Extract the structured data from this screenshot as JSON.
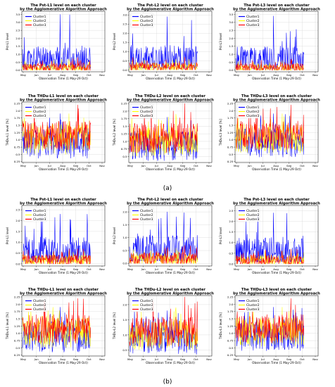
{
  "figure": {
    "panel_labels": [
      "(a)",
      "(b)"
    ]
  },
  "chart_data": [
    {
      "type": "line",
      "group": "(a)",
      "title": "The Pst-L1 level on each cluster",
      "subtitle": "by the Agglomerative Algorithm Approach",
      "ylabel": "Pst-L1 level",
      "xlabel": "Observation Time (1 May-29 Oct)",
      "ylim": [
        -0.1,
        3.7
      ],
      "yticks": [
        0.0,
        0.5,
        1.0,
        1.5,
        2.0,
        2.5,
        3.0,
        3.5
      ],
      "x_ticks": [
        "May",
        "Jun",
        "Jul",
        "Aug",
        "Sep",
        "Oct",
        "Nov"
      ],
      "grid": true,
      "legend_position": "top-left",
      "series": [
        {
          "name": "Cluster1",
          "color": "#0000ff",
          "base": 0.5,
          "amp": 1.0,
          "peak": 3.5,
          "low": 0.1,
          "seed": 11
        },
        {
          "name": "Cluster2",
          "color": "#ffff00",
          "base": 0.15,
          "amp": 0.25,
          "peak": 0.7,
          "low": 0.0,
          "seed": 12
        },
        {
          "name": "Cluster3",
          "color": "#ff0000",
          "base": 0.18,
          "amp": 0.25,
          "peak": 0.8,
          "low": 0.0,
          "seed": 13
        }
      ]
    },
    {
      "type": "line",
      "group": "(a)",
      "title": "The Pst-L2 level on each cluster",
      "subtitle": "by the Agglomerative Algorithm Approach",
      "ylabel": "Pst-L2 level",
      "xlabel": "Observation Time (1 May-29 Oct)",
      "ylim": [
        -0.1,
        3.2
      ],
      "yticks": [
        0.0,
        0.5,
        1.0,
        1.5,
        2.0,
        2.5,
        3.0
      ],
      "x_ticks": [
        "May",
        "Jun",
        "Jul",
        "Aug",
        "Sep",
        "Oct",
        "Nov"
      ],
      "grid": true,
      "legend_position": "top-left",
      "series": [
        {
          "name": "Cluster1",
          "color": "#0000ff",
          "base": 0.45,
          "amp": 0.9,
          "peak": 2.9,
          "low": 0.1,
          "seed": 21
        },
        {
          "name": "Cluster2",
          "color": "#ffff00",
          "base": 0.15,
          "amp": 0.25,
          "peak": 0.6,
          "low": 0.0,
          "seed": 22
        },
        {
          "name": "Cluster3",
          "color": "#ff0000",
          "base": 0.18,
          "amp": 0.25,
          "peak": 0.7,
          "low": 0.0,
          "seed": 23
        }
      ]
    },
    {
      "type": "line",
      "group": "(a)",
      "title": "The Pst-L3 level on each cluster",
      "subtitle": "by the Agglomerative Algorithm Approach",
      "ylabel": "Pst-L3 level",
      "xlabel": "Observation Time (1 May-29 Oct)",
      "ylim": [
        -0.1,
        3.7
      ],
      "yticks": [
        0.0,
        0.5,
        1.0,
        1.5,
        2.0,
        2.5,
        3.0,
        3.5
      ],
      "x_ticks": [
        "May",
        "Jun",
        "Jul",
        "Aug",
        "Sep",
        "Oct",
        "Nov"
      ],
      "grid": true,
      "legend_position": "top-left",
      "series": [
        {
          "name": "Cluster1",
          "color": "#0000ff",
          "base": 0.5,
          "amp": 1.0,
          "peak": 3.4,
          "low": 0.1,
          "seed": 31
        },
        {
          "name": "Cluster2",
          "color": "#ffff00",
          "base": 0.15,
          "amp": 0.25,
          "peak": 0.6,
          "low": 0.0,
          "seed": 32
        },
        {
          "name": "Cluster3",
          "color": "#ff0000",
          "base": 0.18,
          "amp": 0.25,
          "peak": 0.7,
          "low": 0.0,
          "seed": 33
        }
      ]
    },
    {
      "type": "line",
      "group": "(a)",
      "title": "The THDu-L1 level on each cluster",
      "subtitle": "by the Agglomerative Algorithm Approach",
      "ylabel": "THDu-L1 level [%]",
      "xlabel": "Observation Time (1 May-29 Oct)",
      "ylim": [
        0.22,
        2.3
      ],
      "yticks": [
        0.25,
        0.5,
        0.75,
        1.0,
        1.25,
        1.5,
        1.75,
        2.0,
        2.25
      ],
      "x_ticks": [
        "May",
        "Jun",
        "Jul",
        "Aug",
        "Sep",
        "Oct",
        "Nov"
      ],
      "grid": true,
      "legend_position": "top-left",
      "series": [
        {
          "name": "Cluster1",
          "color": "#0000ff",
          "base": 0.9,
          "amp": 0.55,
          "peak": 1.9,
          "low": 0.35,
          "seed": 41
        },
        {
          "name": "Cluster2",
          "color": "#ffff00",
          "base": 1.05,
          "amp": 0.55,
          "peak": 1.9,
          "low": 0.4,
          "seed": 42
        },
        {
          "name": "Cluster3",
          "color": "#ff0000",
          "base": 1.15,
          "amp": 0.5,
          "peak": 2.2,
          "low": 0.5,
          "seed": 43
        }
      ]
    },
    {
      "type": "line",
      "group": "(a)",
      "title": "The THDu-L2 level on each cluster",
      "subtitle": "by the Agglomerative Algorithm Approach",
      "ylabel": "THDu-L2 level [%]",
      "xlabel": "Observation Time (1 May-29 Oct)",
      "ylim": [
        0.3,
        2.3
      ],
      "yticks": [
        0.5,
        0.75,
        1.0,
        1.25,
        1.5,
        1.75,
        2.0,
        2.25
      ],
      "x_ticks": [
        "May",
        "Jun",
        "Jul",
        "Aug",
        "Sep",
        "Oct",
        "Nov"
      ],
      "grid": true,
      "legend_position": "top-left",
      "series": [
        {
          "name": "Cluster1",
          "color": "#0000ff",
          "base": 0.85,
          "amp": 0.5,
          "peak": 1.8,
          "low": 0.35,
          "seed": 51
        },
        {
          "name": "Cluster2",
          "color": "#ffff00",
          "base": 1.0,
          "amp": 0.5,
          "peak": 1.9,
          "low": 0.45,
          "seed": 52
        },
        {
          "name": "Cluster3",
          "color": "#ff0000",
          "base": 1.1,
          "amp": 0.5,
          "peak": 2.25,
          "low": 0.5,
          "seed": 53
        }
      ]
    },
    {
      "type": "line",
      "group": "(a)",
      "title": "The THDu-L3 level on each cluster",
      "subtitle": "by the Agglomerative Algorithm Approach",
      "ylabel": "THDu-L3 level [%]",
      "xlabel": "Observation Time (1 May-29 Oct)",
      "ylim": [
        0.22,
        2.3
      ],
      "yticks": [
        0.25,
        0.5,
        0.75,
        1.0,
        1.25,
        1.5,
        1.75,
        2.0,
        2.25
      ],
      "x_ticks": [
        "May",
        "Jun",
        "Jul",
        "Aug",
        "Sep",
        "Oct",
        "Nov"
      ],
      "grid": true,
      "legend_position": "top-left",
      "series": [
        {
          "name": "Cluster1",
          "color": "#0000ff",
          "base": 0.9,
          "amp": 0.5,
          "peak": 1.9,
          "low": 0.35,
          "seed": 61
        },
        {
          "name": "Cluster2",
          "color": "#ffff00",
          "base": 1.05,
          "amp": 0.5,
          "peak": 1.9,
          "low": 0.4,
          "seed": 62
        },
        {
          "name": "Cluster3",
          "color": "#ff0000",
          "base": 1.15,
          "amp": 0.5,
          "peak": 2.2,
          "low": 0.5,
          "seed": 63
        }
      ]
    },
    {
      "type": "line",
      "group": "(b)",
      "title": "The Pst-L1 level on each cluster",
      "subtitle": "by the Agglomerative Algorithm Approach",
      "ylabel": "Pst-L1 level",
      "xlabel": "Observation Time (1 May-29 Oct)",
      "ylim": [
        -0.1,
        2.7
      ],
      "yticks": [
        0.0,
        0.5,
        1.0,
        1.5,
        2.0,
        2.5
      ],
      "x_ticks": [
        "May",
        "Jun",
        "Jul",
        "Aug",
        "Sep",
        "Oct",
        "Nov"
      ],
      "grid": true,
      "legend_position": "top-left",
      "series": [
        {
          "name": "Cluster1",
          "color": "#0000ff",
          "base": 0.45,
          "amp": 0.8,
          "peak": 2.3,
          "low": 0.1,
          "seed": 71
        },
        {
          "name": "Cluster2",
          "color": "#ffff00",
          "base": 0.15,
          "amp": 0.25,
          "peak": 0.6,
          "low": 0.0,
          "seed": 72
        },
        {
          "name": "Cluster3",
          "color": "#ff0000",
          "base": 0.18,
          "amp": 0.25,
          "peak": 0.7,
          "low": 0.0,
          "seed": 73
        }
      ]
    },
    {
      "type": "line",
      "group": "(b)",
      "title": "The Pst-L2 level on each cluster",
      "subtitle": "by the Agglomerative Algorithm Approach",
      "ylabel": "Pst-L2 level",
      "xlabel": "Observation Time (1 May-29 Oct)",
      "ylim": [
        -0.1,
        2.25
      ],
      "yticks": [
        0.0,
        0.5,
        1.0,
        1.5,
        2.0
      ],
      "x_ticks": [
        "May",
        "Jun",
        "Jul",
        "Aug",
        "Sep",
        "Oct",
        "Nov"
      ],
      "grid": true,
      "legend_position": "top-left",
      "series": [
        {
          "name": "Cluster1",
          "color": "#0000ff",
          "base": 0.4,
          "amp": 0.7,
          "peak": 2.0,
          "low": 0.1,
          "seed": 81
        },
        {
          "name": "Cluster2",
          "color": "#ffff00",
          "base": 0.15,
          "amp": 0.25,
          "peak": 0.6,
          "low": 0.0,
          "seed": 82
        },
        {
          "name": "Cluster3",
          "color": "#ff0000",
          "base": 0.18,
          "amp": 0.25,
          "peak": 0.7,
          "low": 0.0,
          "seed": 83
        }
      ]
    },
    {
      "type": "line",
      "group": "(b)",
      "title": "The Pst-L3 level on each cluster",
      "subtitle": "by the Agglomerative Algorithm Approach",
      "ylabel": "Pst-L3 level",
      "xlabel": "Observation Time (1 May-29 Oct)",
      "ylim": [
        -0.1,
        2.75
      ],
      "yticks": [
        0.0,
        0.5,
        1.0,
        1.5,
        2.0,
        2.5
      ],
      "x_ticks": [
        "May",
        "Jun",
        "Jul",
        "Aug",
        "Sep",
        "Oct",
        "Nov"
      ],
      "grid": true,
      "legend_position": "top-left",
      "series": [
        {
          "name": "Cluster1",
          "color": "#0000ff",
          "base": 0.45,
          "amp": 0.8,
          "peak": 2.4,
          "low": 0.1,
          "seed": 91
        },
        {
          "name": "Cluster2",
          "color": "#ffff00",
          "base": 0.15,
          "amp": 0.25,
          "peak": 0.6,
          "low": 0.0,
          "seed": 92
        },
        {
          "name": "Cluster3",
          "color": "#ff0000",
          "base": 0.18,
          "amp": 0.25,
          "peak": 0.7,
          "low": 0.0,
          "seed": 93
        }
      ]
    },
    {
      "type": "line",
      "group": "(b)",
      "title": "The THDu-L1 level on each cluster",
      "subtitle": "by the Agglomerative Algorithm Approach",
      "ylabel": "THDu-L1 level [%]",
      "xlabel": "Observation Time (1 May-29 Oct)",
      "ylim": [
        0.22,
        2.3
      ],
      "yticks": [
        0.25,
        0.5,
        0.75,
        1.0,
        1.25,
        1.5,
        1.75,
        2.0,
        2.25
      ],
      "x_ticks": [
        "May",
        "Jun",
        "Jul",
        "Aug",
        "Sep",
        "Oct",
        "Nov"
      ],
      "grid": true,
      "legend_position": "top-left",
      "series": [
        {
          "name": "Cluster1",
          "color": "#0000ff",
          "base": 0.9,
          "amp": 0.55,
          "peak": 1.9,
          "low": 0.35,
          "seed": 101
        },
        {
          "name": "Cluster2",
          "color": "#ffff00",
          "base": 1.05,
          "amp": 0.55,
          "peak": 1.9,
          "low": 0.4,
          "seed": 102
        },
        {
          "name": "Cluster3",
          "color": "#ff0000",
          "base": 1.15,
          "amp": 0.5,
          "peak": 2.2,
          "low": 0.5,
          "seed": 103
        }
      ]
    },
    {
      "type": "line",
      "group": "(b)",
      "title": "The THDu-L2 level on each cluster",
      "subtitle": "by the Agglomerative Algorithm Approach",
      "ylabel": "THDu-L2 level [%]",
      "xlabel": "Observation Time (1 May-29 Oct)",
      "ylim": [
        0.3,
        2.3
      ],
      "yticks": [
        0.5,
        1.0,
        1.5,
        2.0
      ],
      "x_ticks": [
        "May",
        "Jun",
        "Jul",
        "Aug",
        "Sep",
        "Oct",
        "Nov"
      ],
      "grid": true,
      "legend_position": "top-left",
      "series": [
        {
          "name": "Cluster1",
          "color": "#0000ff",
          "base": 0.85,
          "amp": 0.5,
          "peak": 1.8,
          "low": 0.35,
          "seed": 111
        },
        {
          "name": "Cluster2",
          "color": "#ffff00",
          "base": 1.0,
          "amp": 0.5,
          "peak": 1.9,
          "low": 0.45,
          "seed": 112
        },
        {
          "name": "Cluster3",
          "color": "#ff0000",
          "base": 1.1,
          "amp": 0.5,
          "peak": 2.25,
          "low": 0.5,
          "seed": 113
        }
      ]
    },
    {
      "type": "line",
      "group": "(b)",
      "title": "The THDu-L3 level on each cluster",
      "subtitle": "by the Agglomerative Algorithm Approach",
      "ylabel": "THDu-L3 level [%]",
      "xlabel": "Observation Time (1 May-29 Oct)",
      "ylim": [
        0.22,
        2.3
      ],
      "yticks": [
        0.25,
        0.5,
        0.75,
        1.0,
        1.25,
        1.5,
        1.75,
        2.0,
        2.25
      ],
      "x_ticks": [
        "May",
        "Jun",
        "Jul",
        "Aug",
        "Sep",
        "Oct",
        "Nov"
      ],
      "grid": true,
      "legend_position": "top-left",
      "series": [
        {
          "name": "Cluster1",
          "color": "#0000ff",
          "base": 0.9,
          "amp": 0.5,
          "peak": 1.9,
          "low": 0.35,
          "seed": 121
        },
        {
          "name": "Cluster2",
          "color": "#ffff00",
          "base": 1.05,
          "amp": 0.5,
          "peak": 1.9,
          "low": 0.4,
          "seed": 122
        },
        {
          "name": "Cluster3",
          "color": "#ff0000",
          "base": 1.15,
          "amp": 0.5,
          "peak": 2.2,
          "low": 0.5,
          "seed": 123
        }
      ]
    }
  ]
}
